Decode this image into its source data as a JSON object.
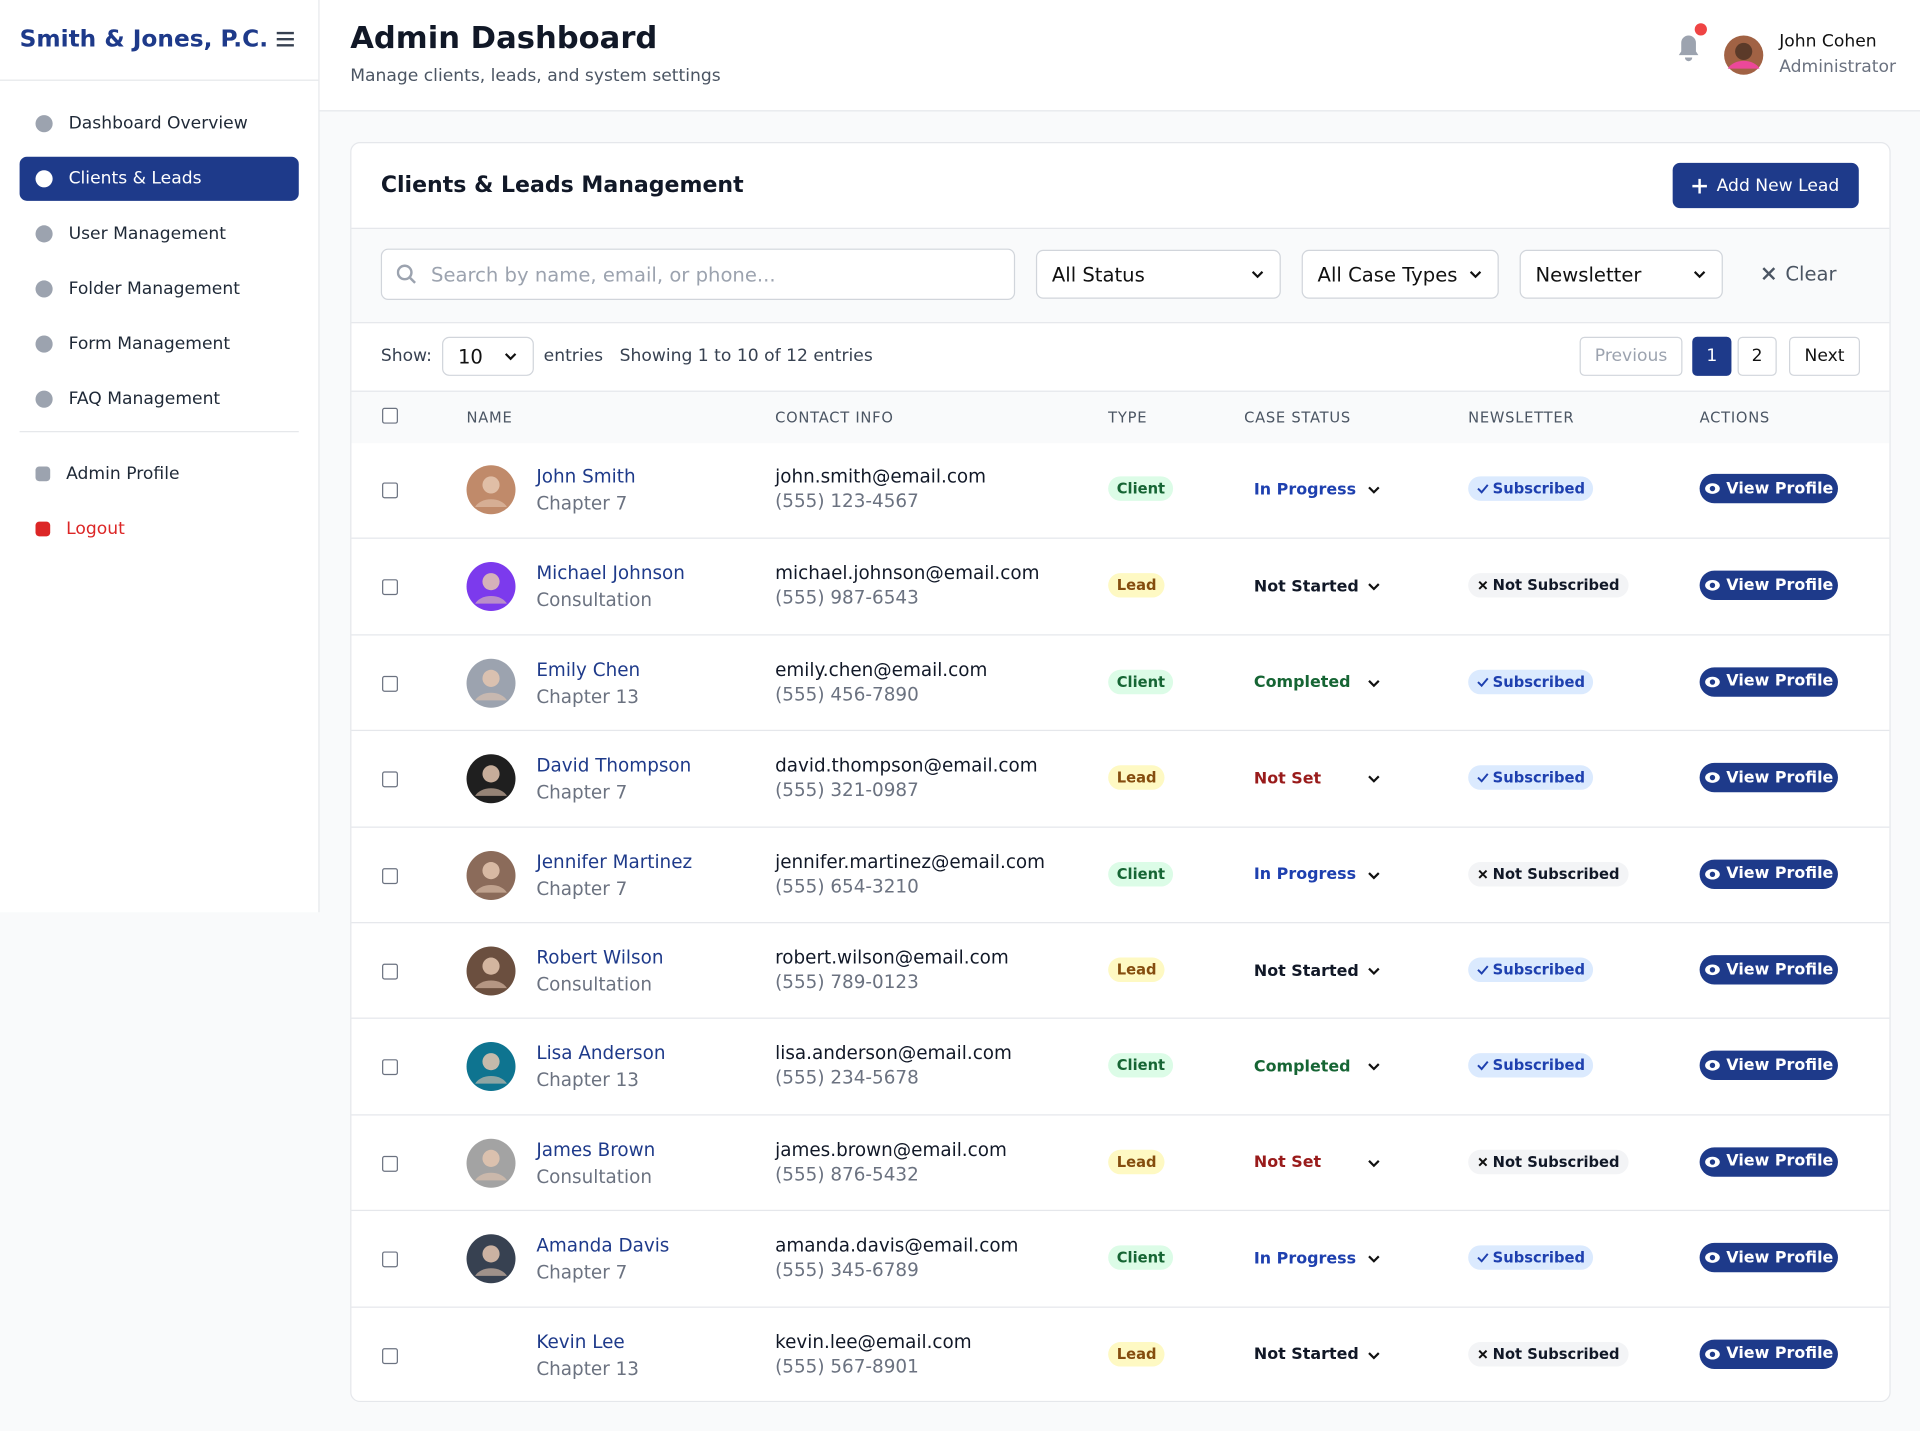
{
  "sidebar": {
    "brand": "Smith & Jones, P.C.",
    "nav": [
      "Dashboard Overview",
      "Clients & Leads",
      "User Management",
      "Folder Management",
      "Form Management",
      "FAQ Management"
    ],
    "active": 1,
    "secondary": [
      "Admin Profile",
      "Logout"
    ]
  },
  "header": {
    "title": "Admin Dashboard",
    "subtitle": "Manage clients, leads, and system settings",
    "user": {
      "name": "John Cohen",
      "role": "Administrator"
    }
  },
  "card": {
    "title": "Clients & Leads Management",
    "add_button": "Add New Lead"
  },
  "filters": {
    "search_placeholder": "Search by name, email, or phone...",
    "status": "All Status",
    "case_type": "All Case Types",
    "newsletter": "Newsletter",
    "clear": "Clear"
  },
  "table_controls": {
    "show": "Show:",
    "page_size": "10",
    "entries": "entries",
    "summary": "Showing 1 to 10 of 12 entries",
    "previous": "Previous",
    "pages": [
      "1",
      "2"
    ],
    "next": "Next"
  },
  "table": {
    "columns": [
      "NAME",
      "CONTACT INFO",
      "TYPE",
      "CASE STATUS",
      "NEWSLETTER",
      "ACTIONS"
    ],
    "action_label": "View Profile",
    "rows": [
      {
        "name": "John Smith",
        "case_type": "Chapter 7",
        "email": "john.smith@email.com",
        "phone": "(555) 123-4567",
        "type": "Client",
        "status": "In Progress",
        "newsletter": "Subscribed"
      },
      {
        "name": "Michael Johnson",
        "case_type": "Consultation",
        "email": "michael.johnson@email.com",
        "phone": "(555) 987-6543",
        "type": "Lead",
        "status": "Not Started",
        "newsletter": "Not Subscribed"
      },
      {
        "name": "Emily Chen",
        "case_type": "Chapter 13",
        "email": "emily.chen@email.com",
        "phone": "(555) 456-7890",
        "type": "Client",
        "status": "Completed",
        "newsletter": "Subscribed"
      },
      {
        "name": "David Thompson",
        "case_type": "Chapter 7",
        "email": "david.thompson@email.com",
        "phone": "(555) 321-0987",
        "type": "Lead",
        "status": "Not Set",
        "newsletter": "Subscribed"
      },
      {
        "name": "Jennifer Martinez",
        "case_type": "Chapter 7",
        "email": "jennifer.martinez@email.com",
        "phone": "(555) 654-3210",
        "type": "Client",
        "status": "In Progress",
        "newsletter": "Not Subscribed"
      },
      {
        "name": "Robert Wilson",
        "case_type": "Consultation",
        "email": "robert.wilson@email.com",
        "phone": "(555) 789-0123",
        "type": "Lead",
        "status": "Not Started",
        "newsletter": "Subscribed"
      },
      {
        "name": "Lisa Anderson",
        "case_type": "Chapter 13",
        "email": "lisa.anderson@email.com",
        "phone": "(555) 234-5678",
        "type": "Client",
        "status": "Completed",
        "newsletter": "Subscribed"
      },
      {
        "name": "James Brown",
        "case_type": "Consultation",
        "email": "james.brown@email.com",
        "phone": "(555) 876-5432",
        "type": "Lead",
        "status": "Not Set",
        "newsletter": "Not Subscribed"
      },
      {
        "name": "Amanda Davis",
        "case_type": "Chapter 7",
        "email": "amanda.davis@email.com",
        "phone": "(555) 345-6789",
        "type": "Client",
        "status": "In Progress",
        "newsletter": "Subscribed"
      },
      {
        "name": "Kevin Lee",
        "case_type": "Chapter 13",
        "email": "kevin.lee@email.com",
        "phone": "(555) 567-8901",
        "type": "Lead",
        "status": "Not Started",
        "newsletter": "Not Subscribed"
      }
    ]
  }
}
